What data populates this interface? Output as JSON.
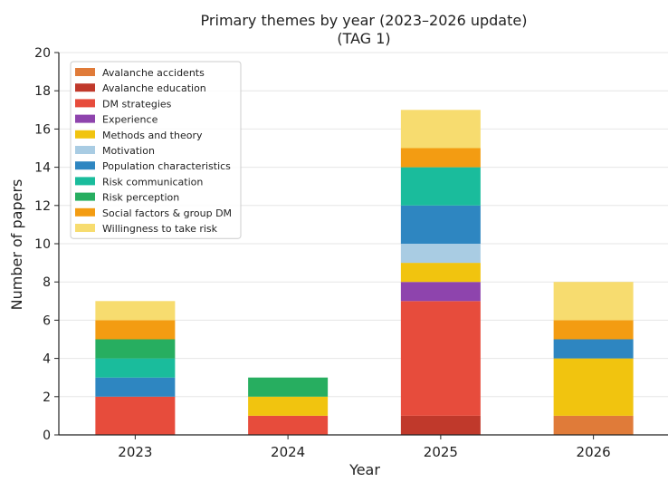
{
  "chart_data": {
    "type": "bar",
    "stacked": true,
    "title": "Primary themes by year (2023–2026 update)",
    "subtitle": "(TAG 1)",
    "xlabel": "Year",
    "ylabel": "Number of papers",
    "ylim": [
      0,
      20
    ],
    "yticks": [
      "0",
      "2",
      "4",
      "6",
      "8",
      "10",
      "12",
      "14",
      "16",
      "18",
      "20"
    ],
    "grid": "horizontal",
    "legend_position": "top-left",
    "categories": [
      "2023",
      "2024",
      "2025",
      "2026"
    ],
    "series": [
      {
        "name": "Avalanche accidents",
        "color": "#e07b39",
        "values": [
          0,
          0,
          0,
          1
        ]
      },
      {
        "name": "Avalanche education",
        "color": "#c0392b",
        "values": [
          0,
          0,
          1,
          0
        ]
      },
      {
        "name": "DM strategies",
        "color": "#e74c3c",
        "values": [
          2,
          1,
          6,
          0
        ]
      },
      {
        "name": "Experience",
        "color": "#8e44ad",
        "values": [
          0,
          0,
          1,
          0
        ]
      },
      {
        "name": "Methods and theory",
        "color": "#f1c40f",
        "values": [
          0,
          1,
          1,
          3
        ]
      },
      {
        "name": "Motivation",
        "color": "#a9cce3",
        "values": [
          0,
          0,
          1,
          0
        ]
      },
      {
        "name": "Population characteristics",
        "color": "#2e86c1",
        "values": [
          1,
          0,
          2,
          1
        ]
      },
      {
        "name": "Risk communication",
        "color": "#1abc9c",
        "values": [
          1,
          0,
          2,
          0
        ]
      },
      {
        "name": "Risk perception",
        "color": "#27ae60",
        "values": [
          1,
          1,
          0,
          0
        ]
      },
      {
        "name": "Social factors & group DM",
        "color": "#f39c12",
        "values": [
          1,
          0,
          1,
          1
        ]
      },
      {
        "name": "Willingness to take risk",
        "color": "#f7dc6f",
        "values": [
          1,
          0,
          2,
          2
        ]
      }
    ]
  }
}
